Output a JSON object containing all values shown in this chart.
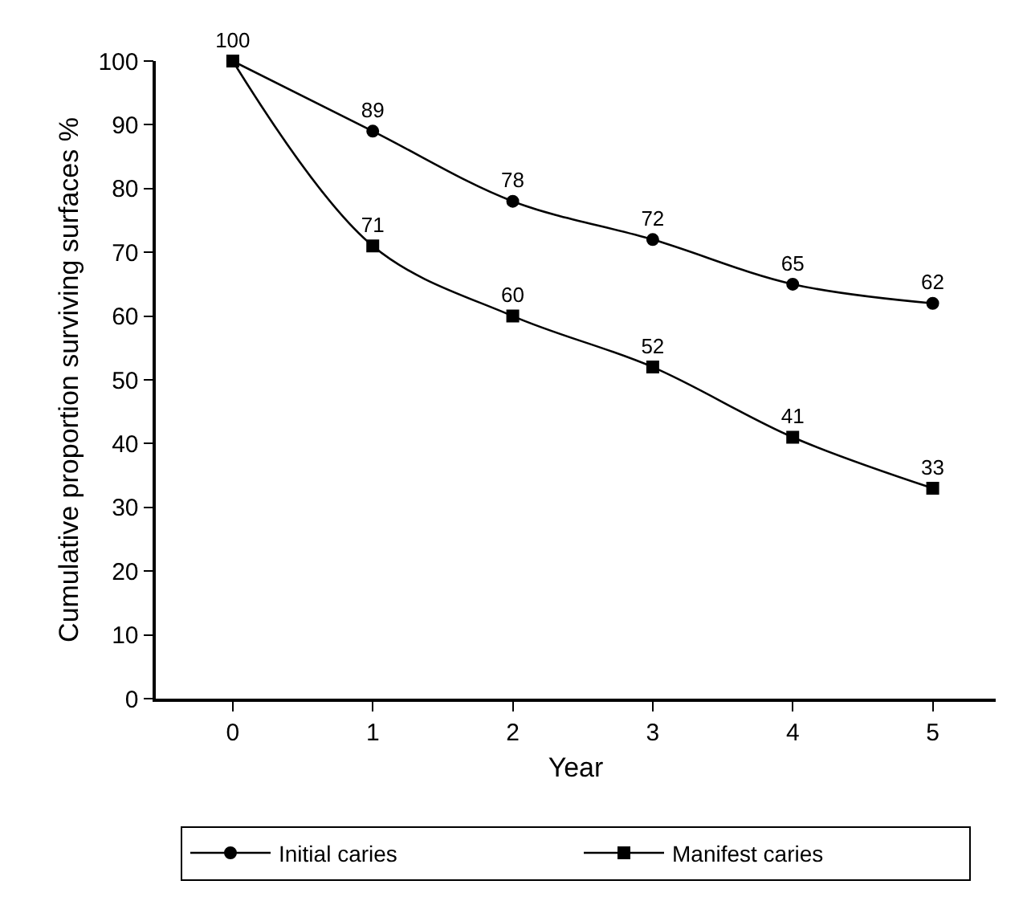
{
  "chart_data": {
    "type": "line",
    "xlabel": "Year",
    "ylabel": "Cumulative proportion surviving surfaces %",
    "x": [
      0,
      1,
      2,
      3,
      4,
      5
    ],
    "series": [
      {
        "name": "Initial caries",
        "color": "#000000",
        "marker": "circle",
        "values": [
          100,
          89,
          78,
          72,
          65,
          62
        ],
        "value_labels": [
          "100",
          "89",
          "78",
          "72",
          "65",
          "62"
        ]
      },
      {
        "name": "Manifest caries",
        "color": "#000000",
        "marker": "square",
        "values": [
          100,
          71,
          60,
          52,
          41,
          33
        ],
        "value_labels": [
          null,
          "71",
          "60",
          "52",
          "41",
          "33"
        ]
      }
    ],
    "xlim": [
      -0.55,
      5.45
    ],
    "xticks": [
      0,
      1,
      2,
      3,
      4,
      5
    ],
    "ylim": [
      0,
      100
    ],
    "yticks": [
      0,
      10,
      20,
      30,
      40,
      50,
      60,
      70,
      80,
      90,
      100
    ],
    "grid": false,
    "legend": "bottom",
    "line_style": "solid"
  }
}
